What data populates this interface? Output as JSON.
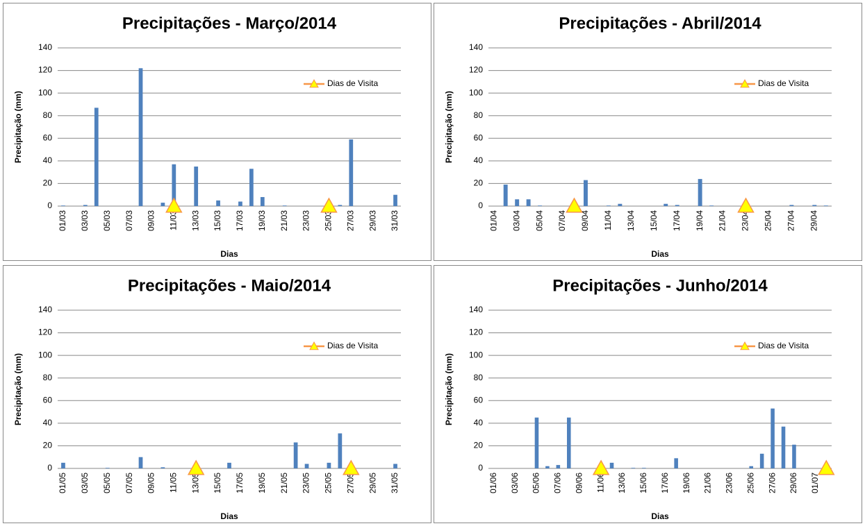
{
  "chart_data": [
    {
      "type": "bar",
      "title": "Precipitações - Março/2014",
      "xlabel": "Dias",
      "ylabel": "Precipitação (mm)",
      "categories": [
        "01/03",
        null,
        "03/03",
        null,
        "05/03",
        null,
        "07/03",
        null,
        "09/03",
        null,
        "11/03",
        null,
        "13/03",
        null,
        "15/03",
        null,
        "17/03",
        null,
        "19/03",
        null,
        "21/03",
        null,
        "23/03",
        null,
        "25/03",
        null,
        "27/03",
        null,
        "29/03",
        null,
        "31/03"
      ],
      "ylim": [
        0,
        140
      ],
      "yticks": [
        0,
        20,
        40,
        60,
        80,
        100,
        120,
        140
      ],
      "grid": true,
      "legend": "upper right",
      "series": [
        {
          "color": "#4f81bd",
          "values": [
            0.5,
            0,
            1,
            87,
            0,
            0,
            0,
            122,
            0,
            3,
            37,
            0,
            35,
            0,
            5,
            0,
            4,
            33,
            8,
            0,
            0.5,
            0,
            0,
            0,
            0,
            1,
            59,
            0,
            0,
            0,
            10
          ]
        },
        {
          "name": "Dias de Visita",
          "type": "line",
          "marker": "triangle",
          "color": "#f79646",
          "marker_color": "#ffff00",
          "values": [
            null,
            null,
            null,
            null,
            null,
            null,
            null,
            null,
            null,
            null,
            0,
            null,
            null,
            null,
            null,
            null,
            null,
            null,
            null,
            null,
            null,
            null,
            null,
            null,
            0,
            null,
            null,
            null,
            null,
            null,
            null
          ]
        }
      ]
    },
    {
      "type": "bar",
      "title": "Precipitações - Abril/2014",
      "xlabel": "Dias",
      "ylabel": "Precipitação (mm)",
      "categories": [
        "01/04",
        null,
        "03/04",
        null,
        "05/04",
        null,
        "07/04",
        null,
        "09/04",
        null,
        "11/04",
        null,
        "13/04",
        null,
        "15/04",
        null,
        "17/04",
        null,
        "19/04",
        null,
        "21/04",
        null,
        "23/04",
        null,
        "25/04",
        null,
        "27/04",
        null,
        "29/04",
        null
      ],
      "ylim": [
        0,
        140
      ],
      "yticks": [
        0,
        20,
        40,
        60,
        80,
        100,
        120,
        140
      ],
      "grid": true,
      "legend": "upper right",
      "series": [
        {
          "color": "#4f81bd",
          "values": [
            0,
            19,
            6,
            6,
            0.5,
            0,
            0,
            0,
            23,
            0,
            0.5,
            2,
            0,
            0,
            0,
            2,
            1,
            0,
            24,
            0.5,
            0,
            0,
            0.5,
            0,
            0,
            0,
            1,
            0,
            1,
            0.5
          ]
        },
        {
          "name": "Dias de Visita",
          "type": "line",
          "marker": "triangle",
          "color": "#f79646",
          "marker_color": "#ffff00",
          "values": [
            null,
            null,
            null,
            null,
            null,
            null,
            null,
            0,
            null,
            null,
            null,
            null,
            null,
            null,
            null,
            null,
            null,
            null,
            null,
            null,
            null,
            null,
            0,
            null,
            null,
            null,
            null,
            null,
            null,
            null
          ]
        }
      ]
    },
    {
      "type": "bar",
      "title": "Precipitações - Maio/2014",
      "xlabel": "Dias",
      "ylabel": "Precipitação (mm)",
      "categories": [
        "01/05",
        null,
        "03/05",
        null,
        "05/05",
        null,
        "07/05",
        null,
        "09/05",
        null,
        "11/05",
        null,
        "13/05",
        null,
        "15/05",
        null,
        "17/05",
        null,
        "19/05",
        null,
        "21/05",
        null,
        "23/05",
        null,
        "25/05",
        null,
        "27/05",
        null,
        "29/05",
        null,
        "31/05"
      ],
      "ylim": [
        0,
        140
      ],
      "yticks": [
        0,
        20,
        40,
        60,
        80,
        100,
        120,
        140
      ],
      "grid": true,
      "legend": "upper right",
      "series": [
        {
          "color": "#4f81bd",
          "values": [
            5,
            0,
            0,
            0,
            0.5,
            0,
            0,
            10,
            0,
            1,
            0,
            0,
            0,
            0,
            0,
            5,
            0,
            0,
            0,
            0,
            0,
            23,
            4,
            0,
            5,
            31,
            0,
            0,
            0,
            0,
            4
          ]
        },
        {
          "name": "Dias de Visita",
          "type": "line",
          "marker": "triangle",
          "color": "#f79646",
          "marker_color": "#ffff00",
          "values": [
            null,
            null,
            null,
            null,
            null,
            null,
            null,
            null,
            null,
            null,
            null,
            null,
            0,
            null,
            null,
            null,
            null,
            null,
            null,
            null,
            null,
            null,
            null,
            null,
            null,
            null,
            0,
            null,
            null,
            null,
            null
          ]
        }
      ]
    },
    {
      "type": "bar",
      "title": "Precipitações - Junho/2014",
      "xlabel": "Dias",
      "ylabel": "Precipitação (mm)",
      "categories": [
        "01/06",
        null,
        "03/06",
        null,
        "05/06",
        null,
        "07/06",
        null,
        "09/06",
        null,
        "11/06",
        null,
        "13/06",
        null,
        "15/06",
        null,
        "17/06",
        null,
        "19/06",
        null,
        "21/06",
        null,
        "23/06",
        null,
        "25/06",
        null,
        "27/06",
        null,
        "29/06",
        null,
        "01/07",
        null
      ],
      "ylim": [
        0,
        140
      ],
      "yticks": [
        0,
        20,
        40,
        60,
        80,
        100,
        120,
        140
      ],
      "grid": true,
      "legend": "upper right",
      "series": [
        {
          "color": "#4f81bd",
          "values": [
            0,
            0,
            0,
            0,
            45,
            2,
            3,
            45,
            0,
            0,
            0,
            5,
            0,
            0.5,
            0.5,
            0,
            0,
            9,
            0,
            0,
            0,
            0,
            0,
            0,
            2,
            13,
            53,
            37,
            21,
            0,
            0,
            0
          ]
        },
        {
          "name": "Dias de Visita",
          "type": "line",
          "marker": "triangle",
          "color": "#f79646",
          "marker_color": "#ffff00",
          "values": [
            null,
            null,
            null,
            null,
            null,
            null,
            null,
            null,
            null,
            null,
            0,
            null,
            null,
            null,
            null,
            null,
            null,
            null,
            null,
            null,
            null,
            null,
            null,
            null,
            null,
            null,
            null,
            null,
            null,
            null,
            null,
            0
          ]
        }
      ]
    }
  ]
}
